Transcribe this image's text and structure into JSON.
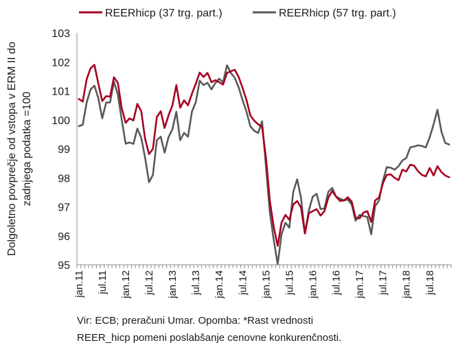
{
  "chart_data": {
    "type": "line",
    "ylabel_lines": [
      "Dolgoletno povprečje od vstopa v ERM II do",
      "zadnjega podatka =100"
    ],
    "ylim": [
      95,
      103
    ],
    "yticks": [
      95,
      96,
      97,
      98,
      99,
      100,
      101,
      102,
      103
    ],
    "xtick_labels": [
      "jan.11",
      "jul.11",
      "jan.12",
      "jul.12",
      "jan.13",
      "jul.13",
      "jan.14",
      "jul.14",
      "jan.15",
      "jul.15",
      "jan.16",
      "jul.16",
      "jan.17",
      "jul.17",
      "jan.18",
      "jul.18"
    ],
    "legend_position": "top",
    "grid": false,
    "x": [
      "jan.11",
      "feb.11",
      "mar.11",
      "apr.11",
      "maj.11",
      "jun.11",
      "jul.11",
      "avg.11",
      "sep.11",
      "okt.11",
      "nov.11",
      "dec.11",
      "jan.12",
      "feb.12",
      "mar.12",
      "apr.12",
      "maj.12",
      "jun.12",
      "jul.12",
      "avg.12",
      "sep.12",
      "okt.12",
      "nov.12",
      "dec.12",
      "jan.13",
      "feb.13",
      "mar.13",
      "apr.13",
      "maj.13",
      "jun.13",
      "jul.13",
      "avg.13",
      "sep.13",
      "okt.13",
      "nov.13",
      "dec.13",
      "jan.14",
      "feb.14",
      "mar.14",
      "apr.14",
      "maj.14",
      "jun.14",
      "jul.14",
      "avg.14",
      "sep.14",
      "okt.14",
      "nov.14",
      "dec.14",
      "jan.15",
      "feb.15",
      "mar.15",
      "apr.15",
      "maj.15",
      "jun.15",
      "jul.15",
      "avg.15",
      "sep.15",
      "okt.15",
      "nov.15",
      "dec.15",
      "jan.16",
      "feb.16",
      "mar.16",
      "apr.16",
      "maj.16",
      "jun.16",
      "jul.16",
      "avg.16",
      "sep.16",
      "okt.16",
      "nov.16",
      "dec.16",
      "jan.17",
      "feb.17",
      "mar.17",
      "apr.17",
      "maj.17",
      "jun.17",
      "jul.17",
      "avg.17",
      "sep.17",
      "okt.17",
      "nov.17",
      "dec.17",
      "jan.18",
      "feb.18",
      "mar.18",
      "apr.18",
      "maj.18",
      "jun.18",
      "jul.18",
      "avg.18",
      "sep.18",
      "okt.18",
      "nov.18",
      "dec.18"
    ],
    "series": [
      {
        "name": "REERhicp (37 trg. part.)",
        "color": "#a50021",
        "values": [
          100.72,
          100.63,
          101.4,
          101.78,
          101.9,
          101.25,
          100.65,
          100.82,
          100.8,
          101.47,
          101.28,
          100.4,
          99.9,
          100.05,
          99.98,
          100.55,
          100.3,
          99.35,
          98.82,
          99.0,
          100.1,
          100.3,
          99.72,
          100.15,
          100.5,
          101.2,
          100.42,
          100.67,
          100.5,
          100.9,
          101.25,
          101.63,
          101.48,
          101.62,
          101.3,
          101.37,
          101.3,
          101.22,
          101.62,
          101.68,
          101.73,
          101.48,
          101.1,
          100.68,
          100.15,
          99.97,
          99.85,
          99.75,
          98.7,
          97.2,
          96.3,
          95.65,
          96.45,
          96.72,
          96.55,
          97.08,
          97.2,
          96.97,
          96.08,
          96.78,
          96.85,
          96.92,
          96.7,
          96.85,
          97.32,
          97.55,
          97.35,
          97.2,
          97.22,
          97.33,
          97.18,
          96.62,
          96.6,
          96.8,
          96.85,
          96.48,
          97.22,
          97.32,
          97.82,
          98.1,
          98.12,
          98.0,
          97.92,
          98.28,
          98.22,
          98.45,
          98.42,
          98.23,
          98.1,
          98.05,
          98.34,
          98.08,
          98.4,
          98.2,
          98.08,
          98.02
        ]
      },
      {
        "name": "REERhicp (57 trg. part.)",
        "color": "#595959",
        "values": [
          99.78,
          99.83,
          100.6,
          101.05,
          101.18,
          100.75,
          100.05,
          100.6,
          100.6,
          101.32,
          100.88,
          100.0,
          99.18,
          99.22,
          99.17,
          99.7,
          99.38,
          98.7,
          97.85,
          98.1,
          99.3,
          99.42,
          98.87,
          99.4,
          99.68,
          100.28,
          99.3,
          99.55,
          99.42,
          100.28,
          100.62,
          101.35,
          101.2,
          101.28,
          101.05,
          101.27,
          101.42,
          101.3,
          101.88,
          101.62,
          101.45,
          101.12,
          100.68,
          100.28,
          99.78,
          99.62,
          99.55,
          99.95,
          98.4,
          96.8,
          95.85,
          95.02,
          96.05,
          96.45,
          96.28,
          97.52,
          97.95,
          97.3,
          96.08,
          96.88,
          97.35,
          97.45,
          96.92,
          96.95,
          97.52,
          97.65,
          97.35,
          97.28,
          97.22,
          97.25,
          97.08,
          96.52,
          96.72,
          96.68,
          96.65,
          96.05,
          97.02,
          97.22,
          97.9,
          98.37,
          98.35,
          98.28,
          98.4,
          98.6,
          98.68,
          99.05,
          99.08,
          99.12,
          99.1,
          99.05,
          99.4,
          99.85,
          100.35,
          99.6,
          99.2,
          99.15
        ]
      }
    ]
  },
  "note": {
    "line1": "Vir: ECB; preračuni Umar. Opomba: *Rast vrednosti",
    "line2": "REER_hicp pomeni poslabšanje cenovne konkurenčnosti."
  }
}
